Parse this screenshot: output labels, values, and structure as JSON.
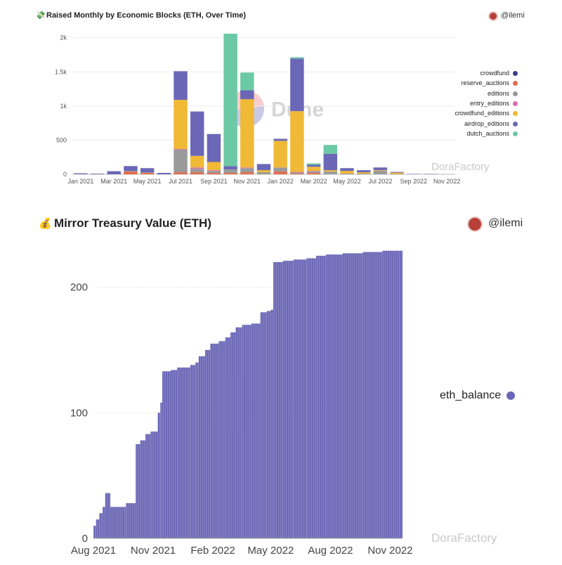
{
  "top": {
    "title_icon": "money-with-wings-icon",
    "title": "Raised Monthly by Economic Blocks (ETH, Over Time)",
    "user": "@ilemi"
  },
  "bottom": {
    "title_icon": "money-bag-icon",
    "title": "Mirror Treasury Value (ETH)",
    "user": "@ilemi"
  },
  "watermarks": {
    "dune": "Dune",
    "dorafactory": "DoraFactory"
  },
  "chart_data": [
    {
      "type": "bar",
      "stacked": true,
      "title": "Raised Monthly by Economic Blocks (ETH, Over Time)",
      "xlabel": "",
      "ylabel": "",
      "ylim": [
        0,
        2100
      ],
      "y_ticks": [
        0,
        500,
        1000,
        1500,
        2000
      ],
      "y_tick_labels": [
        "0",
        "500",
        "1k",
        "1.5k",
        "2k"
      ],
      "x_tick_labels": [
        "Jan 2021",
        "Mar 2021",
        "May 2021",
        "Jul 2021",
        "Sep 2021",
        "Nov 2021",
        "Jan 2022",
        "Mar 2022",
        "May 2022",
        "Jul 2022",
        "Sep 2022",
        "Nov 2022"
      ],
      "categories": [
        "2021-01",
        "2021-02",
        "2021-03",
        "2021-04",
        "2021-05",
        "2021-06",
        "2021-07",
        "2021-08",
        "2021-09",
        "2021-10",
        "2021-11",
        "2021-12",
        "2022-01",
        "2022-02",
        "2022-03",
        "2022-04",
        "2022-05",
        "2022-06",
        "2022-07",
        "2022-08",
        "2022-09",
        "2022-10",
        "2022-11"
      ],
      "grid": true,
      "legend_position": "right",
      "series": [
        {
          "name": "crowdfund",
          "color": "#3f3a8c",
          "values": [
            0,
            0,
            0,
            0,
            0,
            0,
            0,
            0,
            0,
            0,
            0,
            0,
            0,
            0,
            0,
            0,
            0,
            0,
            0,
            0,
            0,
            0,
            0
          ]
        },
        {
          "name": "reserve_auctions",
          "color": "#e06c4a",
          "values": [
            0,
            0,
            0,
            40,
            20,
            0,
            30,
            30,
            20,
            20,
            30,
            0,
            40,
            10,
            20,
            0,
            0,
            0,
            0,
            0,
            0,
            0,
            0
          ]
        },
        {
          "name": "editions",
          "color": "#9a9a9a",
          "values": [
            5,
            5,
            0,
            10,
            10,
            0,
            330,
            50,
            30,
            50,
            60,
            30,
            60,
            15,
            20,
            40,
            10,
            10,
            50,
            5,
            0,
            0,
            0
          ]
        },
        {
          "name": "entry_editions",
          "color": "#d86fb0",
          "values": [
            0,
            0,
            0,
            0,
            0,
            0,
            10,
            20,
            10,
            0,
            10,
            0,
            0,
            10,
            10,
            0,
            0,
            0,
            0,
            0,
            0,
            0,
            0
          ]
        },
        {
          "name": "crowdfund_editions",
          "color": "#f0b936",
          "values": [
            0,
            0,
            0,
            0,
            0,
            0,
            720,
            170,
            120,
            0,
            1000,
            30,
            390,
            890,
            60,
            20,
            40,
            20,
            10,
            20,
            0,
            0,
            0
          ]
        },
        {
          "name": "airdrop_editions",
          "color": "#6b67b6",
          "values": [
            10,
            5,
            45,
            70,
            60,
            20,
            420,
            650,
            410,
            50,
            130,
            90,
            30,
            770,
            30,
            240,
            40,
            30,
            40,
            10,
            5,
            5,
            0
          ]
        },
        {
          "name": "dutch_auctions",
          "color": "#6cc9a5",
          "values": [
            0,
            0,
            0,
            0,
            0,
            0,
            0,
            0,
            0,
            1940,
            260,
            0,
            0,
            20,
            20,
            130,
            0,
            0,
            0,
            0,
            0,
            0,
            0
          ]
        }
      ]
    },
    {
      "type": "bar",
      "title": "Mirror Treasury Value (ETH)",
      "xlabel": "",
      "ylabel": "",
      "ylim": [
        0,
        230
      ],
      "y_ticks": [
        0,
        100,
        200
      ],
      "x_tick_labels": [
        "Aug 2021",
        "Nov 2021",
        "Feb 2022",
        "May 2022",
        "Aug 2022",
        "Nov 2022"
      ],
      "grid": true,
      "legend_position": "right",
      "series": [
        {
          "name": "eth_balance",
          "color": "#6b67b6",
          "steps": [
            {
              "date": "2021-08-01",
              "value": 10
            },
            {
              "date": "2021-08-05",
              "value": 15
            },
            {
              "date": "2021-08-10",
              "value": 20
            },
            {
              "date": "2021-08-15",
              "value": 25
            },
            {
              "date": "2021-08-19",
              "value": 36
            },
            {
              "date": "2021-08-27",
              "value": 25
            },
            {
              "date": "2021-09-20",
              "value": 28
            },
            {
              "date": "2021-10-05",
              "value": 75
            },
            {
              "date": "2021-10-12",
              "value": 78
            },
            {
              "date": "2021-10-20",
              "value": 83
            },
            {
              "date": "2021-10-28",
              "value": 85
            },
            {
              "date": "2021-11-08",
              "value": 100
            },
            {
              "date": "2021-11-12",
              "value": 108
            },
            {
              "date": "2021-11-15",
              "value": 133
            },
            {
              "date": "2021-11-28",
              "value": 134
            },
            {
              "date": "2021-12-08",
              "value": 136
            },
            {
              "date": "2021-12-28",
              "value": 138
            },
            {
              "date": "2022-01-05",
              "value": 140
            },
            {
              "date": "2022-01-10",
              "value": 145
            },
            {
              "date": "2022-01-20",
              "value": 150
            },
            {
              "date": "2022-01-28",
              "value": 155
            },
            {
              "date": "2022-02-10",
              "value": 157
            },
            {
              "date": "2022-02-20",
              "value": 160
            },
            {
              "date": "2022-02-28",
              "value": 164
            },
            {
              "date": "2022-03-08",
              "value": 168
            },
            {
              "date": "2022-03-18",
              "value": 170
            },
            {
              "date": "2022-04-01",
              "value": 171
            },
            {
              "date": "2022-04-15",
              "value": 180
            },
            {
              "date": "2022-04-25",
              "value": 181
            },
            {
              "date": "2022-05-01",
              "value": 182
            },
            {
              "date": "2022-05-05",
              "value": 220
            },
            {
              "date": "2022-05-20",
              "value": 221
            },
            {
              "date": "2022-06-05",
              "value": 222
            },
            {
              "date": "2022-06-25",
              "value": 223
            },
            {
              "date": "2022-07-10",
              "value": 225
            },
            {
              "date": "2022-07-25",
              "value": 226
            },
            {
              "date": "2022-08-20",
              "value": 227
            },
            {
              "date": "2022-09-20",
              "value": 228
            },
            {
              "date": "2022-10-20",
              "value": 229
            },
            {
              "date": "2022-11-15",
              "value": 229
            }
          ]
        }
      ]
    }
  ]
}
